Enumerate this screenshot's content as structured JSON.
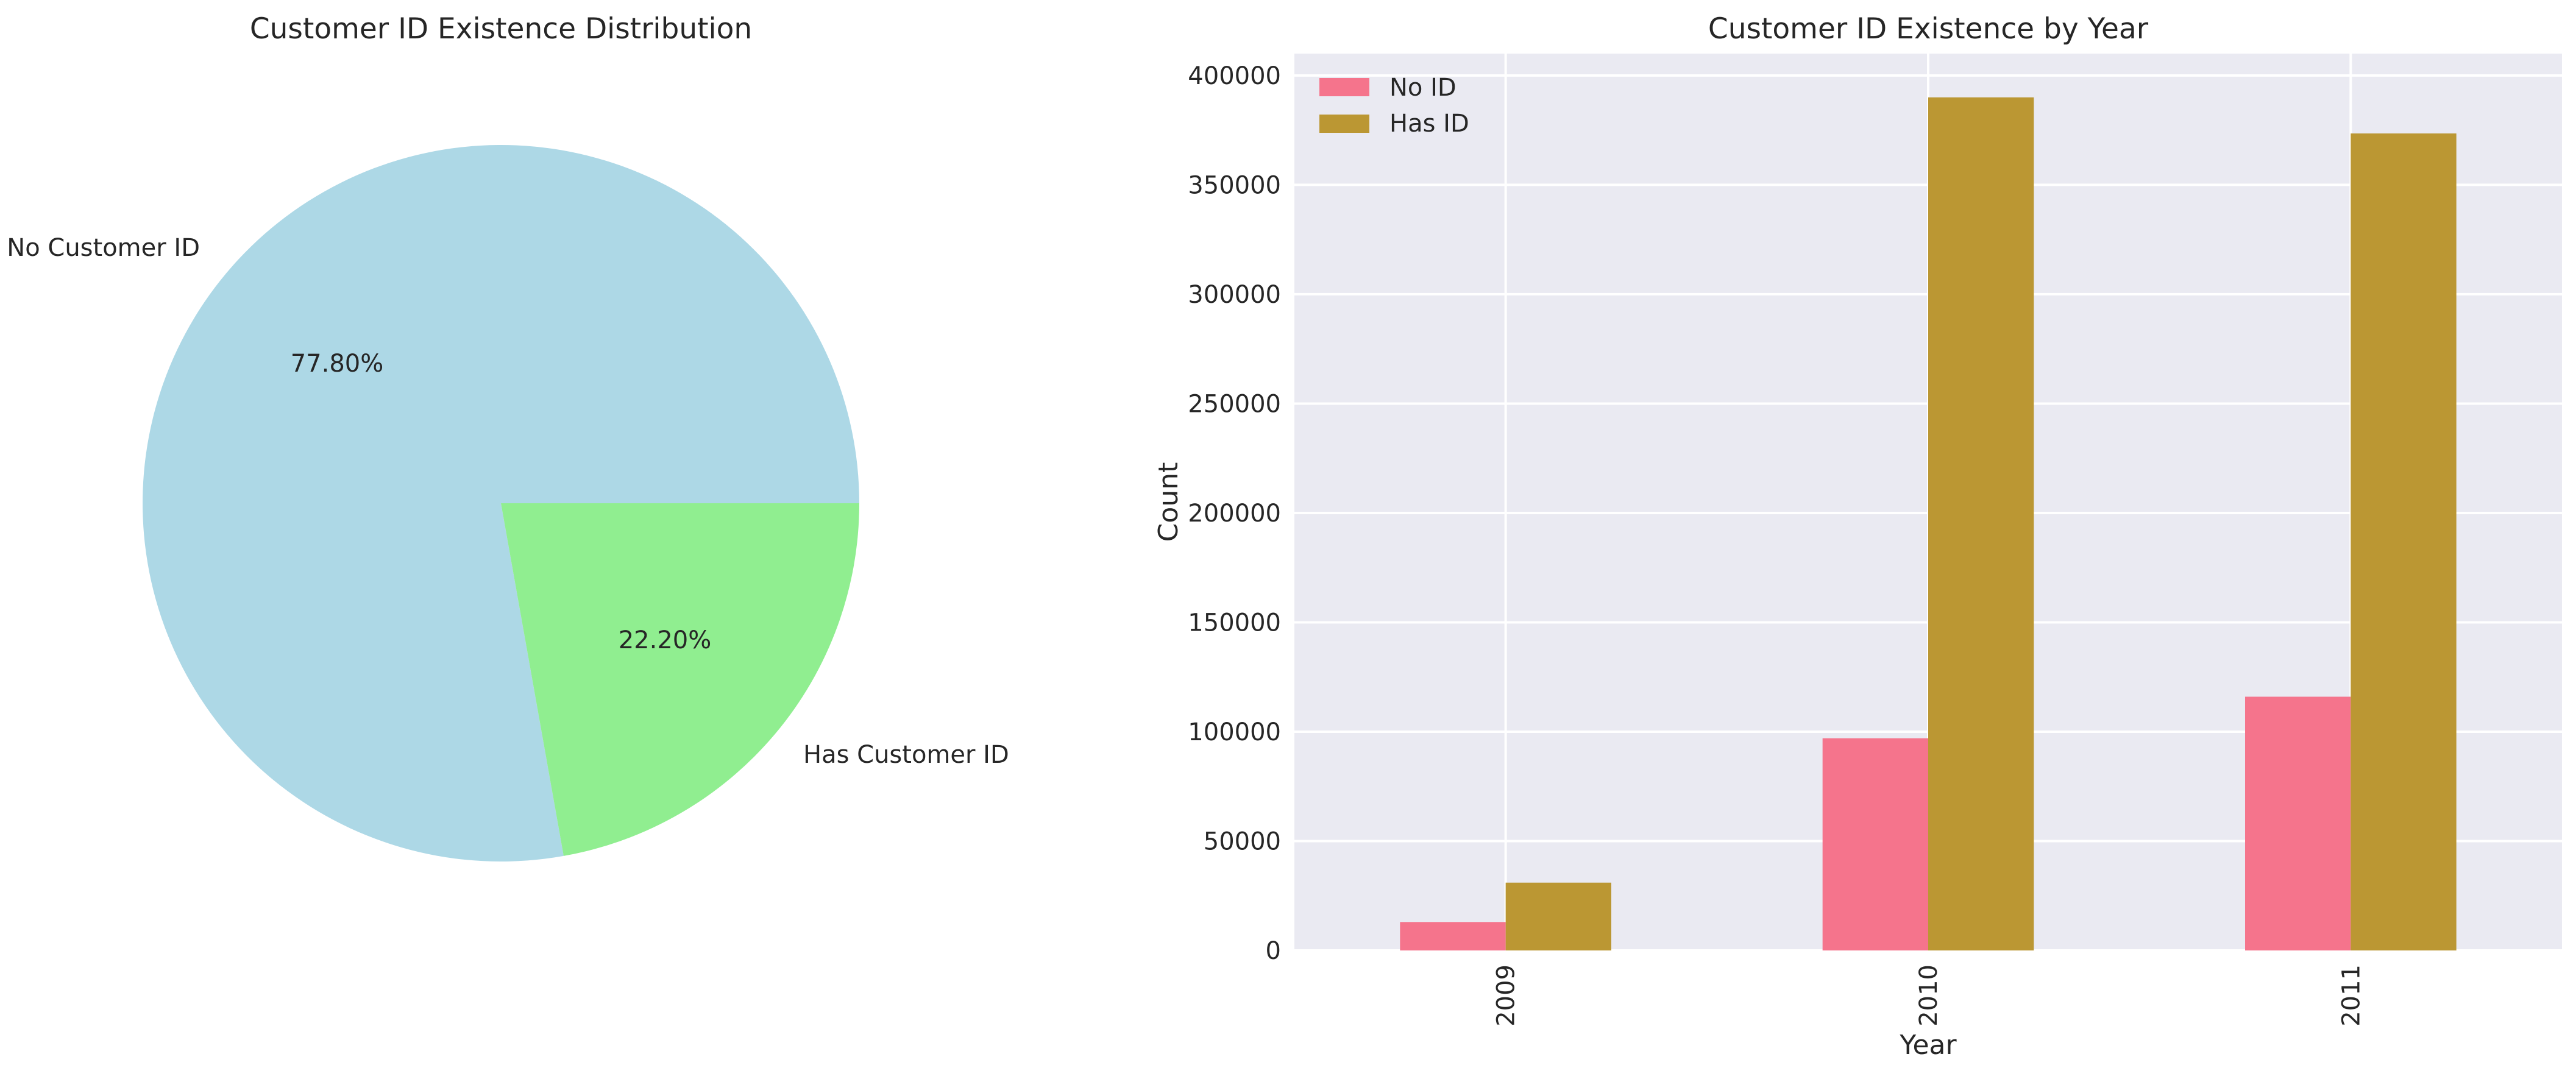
{
  "chart_data": [
    {
      "type": "pie",
      "title": "Customer ID Existence Distribution",
      "labels": [
        "No Customer ID",
        "Has Customer ID"
      ],
      "values": [
        77.8,
        22.2
      ],
      "value_labels": [
        "77.80%",
        "22.20%"
      ],
      "colors": [
        "#add8e6",
        "#90ee90"
      ]
    },
    {
      "type": "bar",
      "title": "Customer ID Existence by Year",
      "xlabel": "Year",
      "ylabel": "Count",
      "categories": [
        "2009",
        "2010",
        "2011"
      ],
      "series": [
        {
          "name": "No ID",
          "values": [
            13000,
            97000,
            116000
          ],
          "color": "#f5748c"
        },
        {
          "name": "Has ID",
          "values": [
            31000,
            390000,
            373500
          ],
          "color": "#bb9733"
        }
      ],
      "ylim": [
        0,
        410000
      ],
      "yticks": [
        0,
        50000,
        100000,
        150000,
        200000,
        250000,
        300000,
        350000,
        400000
      ],
      "ytick_labels": [
        "0",
        "50000",
        "100000",
        "150000",
        "200000",
        "250000",
        "300000",
        "350000",
        "400000"
      ],
      "grid": true,
      "legend": "top-left",
      "background": "#eaeaf2"
    }
  ]
}
